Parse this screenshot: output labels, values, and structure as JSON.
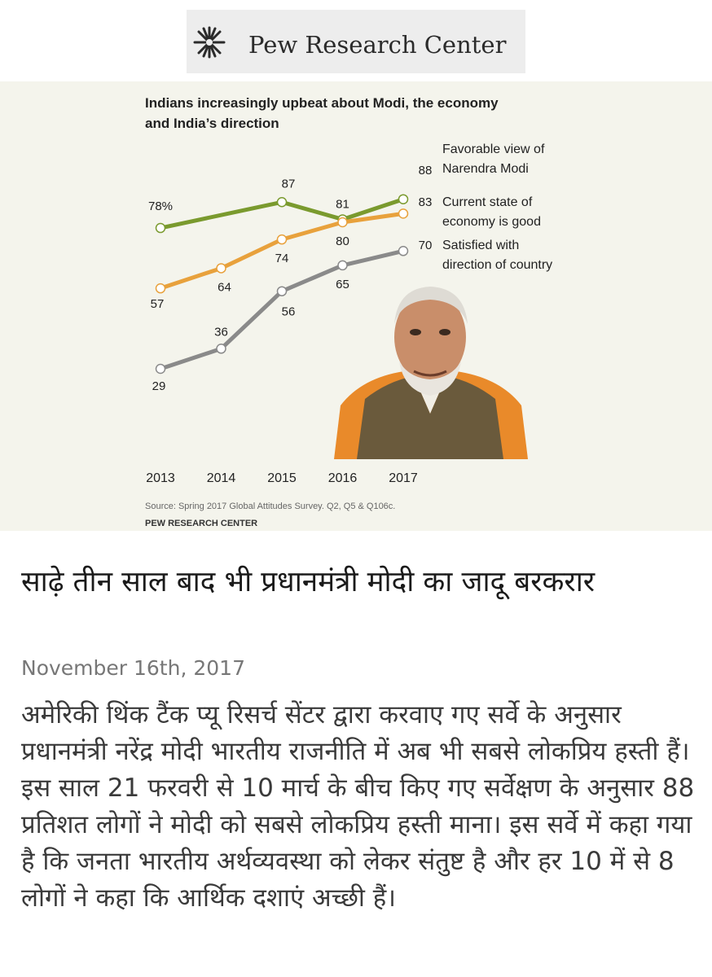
{
  "logo": {
    "text": "Pew Research Center",
    "icon": "sunburst-logo-icon"
  },
  "chart_data": {
    "type": "line",
    "title": "Indians increasingly upbeat about Modi, the economy and India’s direction",
    "x": [
      2013,
      2014,
      2015,
      2016,
      2017
    ],
    "x_tick_labels": [
      "2013",
      "2014",
      "2015",
      "2016",
      "2017"
    ],
    "series": [
      {
        "name": "Favorable view of Narendra Modi",
        "label_lines": [
          "Favorable view of",
          "Narendra Modi"
        ],
        "x": [
          2013,
          2015,
          2016,
          2017
        ],
        "values": [
          78,
          87,
          81,
          88
        ],
        "labels": [
          "78%",
          "87",
          "81",
          "88"
        ],
        "color": "#7a9a2e"
      },
      {
        "name": "Current state of economy is good",
        "label_lines": [
          "Current state of",
          "economy is good"
        ],
        "x": [
          2013,
          2014,
          2015,
          2016,
          2017
        ],
        "values": [
          57,
          64,
          74,
          80,
          83
        ],
        "labels": [
          "57",
          "64",
          "74",
          "80",
          "83"
        ],
        "color": "#e8a13c"
      },
      {
        "name": "Satisfied with direction of country",
        "label_lines": [
          "Satisfied with",
          "direction of country"
        ],
        "x": [
          2013,
          2014,
          2015,
          2016,
          2017
        ],
        "values": [
          29,
          36,
          56,
          65,
          70
        ],
        "labels": [
          "29",
          "36",
          "56",
          "65",
          "70"
        ],
        "color": "#8a8a8a"
      }
    ],
    "source": "Source: Spring 2017 Global Attitudes Survey. Q2, Q5 & Q106c.",
    "credit": "PEW RESEARCH CENTER",
    "grid": false,
    "legend": "right-inline"
  },
  "article": {
    "headline": "साढ़े तीन साल बाद भी प्रधानमंत्री मोदी का जादू बरकरार",
    "date": "November 16th, 2017",
    "body": "अमेरिकी थिंक टैंक प्यू रिसर्च सेंटर द्वारा करवाए गए सर्वे के अनुसार प्रधानमंत्री नरेंद्र मोदी भारतीय राजनीति में अब भी सबसे लोकप्रिय हस्ती हैं। इस साल 21 फरवरी से 10 मार्च के बीच किए गए सर्वेक्षण के अनुसार 88 प्रतिशत लोगों ने मोदी को सबसे लोकप्रिय हस्ती माना। इस सर्वे में कहा गया है कि जनता भारतीय अर्थव्यवस्था को लेकर संतुष्ट है और हर 10 में से 8 लोगों ने कहा कि आर्थिक दशाएं अच्छी हैं।"
  }
}
